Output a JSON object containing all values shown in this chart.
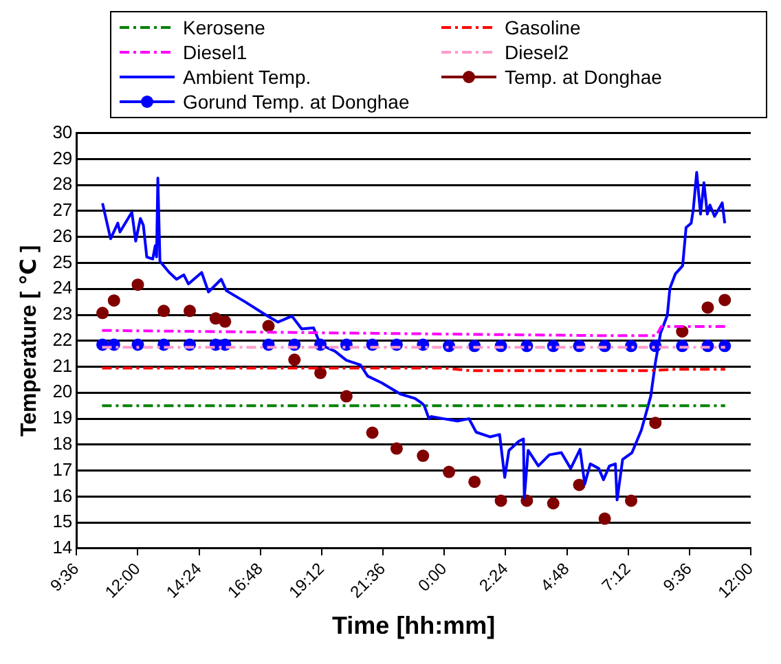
{
  "chart_data": {
    "type": "line",
    "xlabel": "Time [hh:mm]",
    "ylabel": "Temperature [ ℃ ]",
    "xlim": [
      "--01-01T09:36",
      "--01-02T12:00"
    ],
    "xticks": [
      {
        "value": "--01-01T09:36",
        "label": "9:36"
      },
      {
        "value": "--01-01T12:00",
        "label": "12:00"
      },
      {
        "value": "--01-01T14:24",
        "label": "14:24"
      },
      {
        "value": "--01-01T16:48",
        "label": "16:48"
      },
      {
        "value": "--01-01T19:12",
        "label": "19:12"
      },
      {
        "value": "--01-01T21:36",
        "label": "21:36"
      },
      {
        "value": "--01-02T00:00",
        "label": "0:00"
      },
      {
        "value": "--01-02T02:24",
        "label": "2:24"
      },
      {
        "value": "--01-02T04:48",
        "label": "4:48"
      },
      {
        "value": "--01-02T07:12",
        "label": "7:12"
      },
      {
        "value": "--01-02T09:36",
        "label": "9:36"
      },
      {
        "value": "--01-02T12:00",
        "label": "12:00"
      }
    ],
    "ylim": [
      14,
      30
    ],
    "yticks": [
      14,
      15,
      16,
      17,
      18,
      19,
      20,
      21,
      22,
      23,
      24,
      25,
      26,
      27,
      28,
      29,
      30
    ],
    "grid": "y",
    "legend": "top",
    "series": [
      {
        "name": "Kerosene",
        "color": "#008000",
        "line_style": "dashed",
        "marker": "none",
        "x": [
          "--01-01T10:36",
          "--01-02T11:00"
        ],
        "values": [
          19.5,
          19.5
        ]
      },
      {
        "name": "Gasoline",
        "color": "#ff0000",
        "line_style": "dashed",
        "marker": "none",
        "x": [
          "--01-01T10:36",
          "--01-02T00:00",
          "--01-02T01:00",
          "--01-02T08:00",
          "--01-02T09:00",
          "--01-02T11:00"
        ],
        "values": [
          20.95,
          20.95,
          20.85,
          20.85,
          20.9,
          20.9
        ]
      },
      {
        "name": "Diesel1",
        "color": "#ff00ff",
        "line_style": "dashed",
        "marker": "none",
        "x": [
          "--01-01T10:36",
          "--01-01T20:00",
          "--01-02T06:00",
          "--01-02T08:18",
          "--01-02T08:30",
          "--01-02T11:00"
        ],
        "values": [
          22.4,
          22.3,
          22.2,
          22.2,
          22.55,
          22.55
        ]
      },
      {
        "name": "Diesel2",
        "color": "#ff99cc",
        "line_style": "dashed",
        "marker": "none",
        "x": [
          "--01-01T10:36",
          "--01-02T11:00"
        ],
        "values": [
          21.75,
          21.75
        ]
      },
      {
        "name": "Ambient Temp.",
        "color": "#0000ff",
        "line_style": "solid",
        "marker": "none",
        "x": [
          "--01-01T10:37",
          "--01-01T10:56",
          "--01-01T11:13",
          "--01-01T11:18",
          "--01-01T11:46",
          "--01-01T11:55",
          "--01-01T12:06",
          "--01-01T12:13",
          "--01-01T12:21",
          "--01-01T12:35",
          "--01-01T12:41",
          "--01-01T12:44",
          "--01-01T12:47",
          "--01-01T12:52",
          "--01-01T13:14",
          "--01-01T13:31",
          "--01-01T13:48",
          "--01-01T13:59",
          "--01-01T14:30",
          "--01-01T14:46",
          "--01-01T15:16",
          "--01-01T15:28",
          "--01-01T16:12",
          "--01-01T17:02",
          "--01-01T17:29",
          "--01-01T18:02",
          "--01-01T18:25",
          "--01-01T18:53",
          "--01-01T19:09",
          "--01-01T19:43",
          "--01-01T20:10",
          "--01-01T20:43",
          "--01-01T21:00",
          "--01-01T21:33",
          "--01-01T22:17",
          "--01-01T22:51",
          "--01-01T23:07",
          "--01-01T23:13",
          "--01-01T23:24",
          "--01-01T23:29",
          "--01-01T23:58",
          "--01-02T00:31",
          "--01-02T00:58",
          "--01-02T01:15",
          "--01-02T01:48",
          "--01-02T02:10",
          "--01-02T02:22",
          "--01-02T02:32",
          "--01-02T02:55",
          "--01-02T03:06",
          "--01-02T03:08",
          "--01-02T03:17",
          "--01-02T03:41",
          "--01-02T04:07",
          "--01-02T04:35",
          "--01-02T04:57",
          "--01-02T05:19",
          "--01-02T05:30",
          "--01-02T05:43",
          "--01-02T06:03",
          "--01-02T06:14",
          "--01-02T06:28",
          "--01-02T06:42",
          "--01-02T06:46",
          "--01-02T06:59",
          "--01-02T07:21",
          "--01-02T07:43",
          "--01-02T08:05",
          "--01-02T08:16",
          "--01-02T08:28",
          "--01-02T08:44",
          "--01-02T08:50",
          "--01-02T09:03",
          "--01-02T09:20",
          "--01-02T09:28",
          "--01-02T09:40",
          "--01-02T09:45",
          "--01-02T09:53",
          "--01-02T10:02",
          "--01-02T10:10",
          "--01-02T10:18",
          "--01-02T10:24",
          "--01-02T10:35",
          "--01-02T10:53",
          "--01-02T10:59"
        ],
        "values": [
          27.3,
          25.93,
          26.53,
          26.19,
          26.95,
          25.84,
          26.71,
          26.45,
          25.23,
          25.15,
          25.67,
          25.23,
          28.27,
          25.06,
          24.63,
          24.37,
          24.54,
          24.19,
          24.63,
          23.88,
          24.37,
          23.93,
          23.5,
          22.98,
          22.72,
          22.95,
          22.46,
          22.5,
          21.85,
          21.6,
          21.25,
          21.07,
          20.64,
          20.38,
          19.95,
          19.78,
          19.6,
          19.5,
          19.0,
          19.08,
          19.0,
          18.91,
          19.0,
          18.48,
          18.3,
          18.39,
          16.74,
          17.78,
          18.13,
          18.22,
          15.95,
          17.78,
          17.18,
          17.61,
          17.69,
          17.08,
          17.82,
          16.48,
          17.26,
          17.08,
          16.65,
          17.18,
          17.26,
          15.87,
          17.43,
          17.69,
          18.56,
          19.86,
          21.16,
          22.29,
          22.98,
          24.02,
          24.58,
          24.89,
          26.36,
          26.53,
          27.05,
          28.49,
          26.88,
          28.09,
          26.88,
          27.23,
          26.79,
          27.31,
          26.53
        ]
      },
      {
        "name": "Temp. at Donghae",
        "type": "scatter",
        "color": "#800000",
        "marker": "circle",
        "x": [
          "--01-01T10:37",
          "--01-01T11:04",
          "--01-01T12:00",
          "--01-01T13:01",
          "--01-01T14:02",
          "--01-01T15:03",
          "--01-01T15:25",
          "--01-01T17:07",
          "--01-01T18:08",
          "--01-01T19:09",
          "--01-01T20:10",
          "--01-01T21:11",
          "--01-01T22:08",
          "--01-01T23:10",
          "--01-02T00:11",
          "--01-02T01:11",
          "--01-02T02:13",
          "--01-02T03:14",
          "--01-02T04:16",
          "--01-02T05:17",
          "--01-02T06:17",
          "--01-02T07:19",
          "--01-02T08:16",
          "--01-02T09:19",
          "--01-02T10:19",
          "--01-02T10:59"
        ],
        "values": [
          23.07,
          23.55,
          24.16,
          23.15,
          23.15,
          22.86,
          22.74,
          22.57,
          21.27,
          20.76,
          19.86,
          18.46,
          17.85,
          17.57,
          16.95,
          16.57,
          15.84,
          15.84,
          15.74,
          16.45,
          15.15,
          15.84,
          18.84,
          22.36,
          23.28,
          23.57
        ]
      },
      {
        "name": "Gorund Temp. at Donghae",
        "type": "scatter",
        "color": "#0000ff",
        "marker": "circle",
        "x": [
          "--01-01T10:37",
          "--01-01T11:04",
          "--01-01T12:00",
          "--01-01T13:01",
          "--01-01T14:02",
          "--01-01T15:03",
          "--01-01T15:25",
          "--01-01T17:07",
          "--01-01T18:08",
          "--01-01T19:09",
          "--01-01T20:10",
          "--01-01T21:11",
          "--01-01T22:08",
          "--01-01T23:10",
          "--01-02T00:11",
          "--01-02T01:11",
          "--01-02T02:13",
          "--01-02T03:14",
          "--01-02T04:16",
          "--01-02T05:17",
          "--01-02T06:17",
          "--01-02T07:19",
          "--01-02T08:16",
          "--01-02T09:19",
          "--01-02T10:19",
          "--01-02T10:59"
        ],
        "values": [
          21.85,
          21.85,
          21.85,
          21.85,
          21.85,
          21.85,
          21.85,
          21.85,
          21.85,
          21.85,
          21.85,
          21.85,
          21.85,
          21.85,
          21.8,
          21.8,
          21.8,
          21.8,
          21.8,
          21.8,
          21.8,
          21.8,
          21.8,
          21.8,
          21.8,
          21.8
        ]
      }
    ]
  }
}
